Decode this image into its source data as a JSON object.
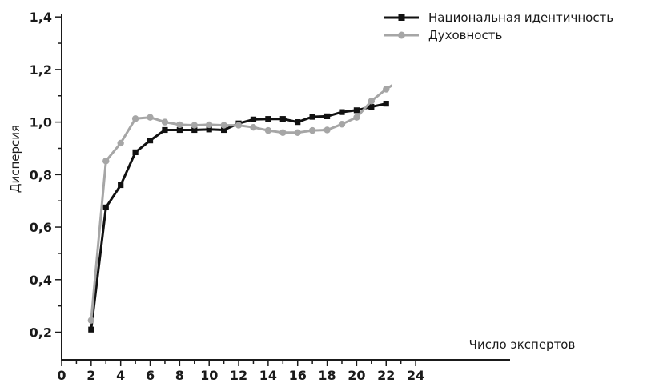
{
  "chart_data": {
    "type": "line",
    "title": "",
    "xlabel": "Число экспертов",
    "ylabel": "Дисперсия",
    "xlim": [
      0,
      25
    ],
    "ylim": [
      0.15,
      1.4
    ],
    "x_ticks": [
      "0",
      "2",
      "4",
      "6",
      "8",
      "10",
      "12",
      "14",
      "16",
      "18",
      "20",
      "22",
      "24"
    ],
    "y_ticks": [
      "0,2",
      "0,4",
      "0,6",
      "0,8",
      "1,0",
      "1,2",
      "1,4"
    ],
    "grid": false,
    "legend_position": "top-right",
    "series": [
      {
        "name": "Национальная идентичность",
        "color": "#111111",
        "marker": "square",
        "x": [
          2,
          3,
          4,
          5,
          6,
          7,
          8,
          9,
          10,
          11,
          12,
          13,
          14,
          15,
          16,
          17,
          18,
          19,
          20,
          21,
          22
        ],
        "y": [
          0.21,
          0.675,
          0.76,
          0.885,
          0.93,
          0.97,
          0.97,
          0.97,
          0.972,
          0.97,
          0.995,
          1.01,
          1.012,
          1.012,
          1.0,
          1.02,
          1.022,
          1.038,
          1.045,
          1.058,
          1.07
        ]
      },
      {
        "name": "Духовность",
        "color": "#a6a6a6",
        "marker": "circle",
        "x": [
          2,
          3,
          4,
          5,
          6,
          7,
          8,
          9,
          10,
          11,
          12,
          13,
          14,
          15,
          16,
          17,
          18,
          19,
          20,
          21,
          22,
          22.4
        ],
        "y": [
          0.245,
          0.852,
          0.92,
          1.013,
          1.018,
          1.0,
          0.99,
          0.988,
          0.99,
          0.988,
          0.988,
          0.98,
          0.968,
          0.96,
          0.96,
          0.968,
          0.97,
          0.992,
          1.018,
          1.08,
          1.125,
          1.14
        ],
        "marker_count": 21
      }
    ]
  }
}
